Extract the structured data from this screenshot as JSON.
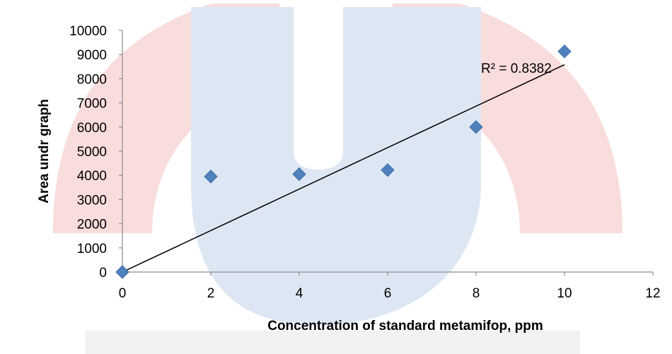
{
  "chart_data": {
    "type": "scatter",
    "title": "",
    "xlabel": "Concentration of standard metamifop, ppm",
    "ylabel": "Area undr graph",
    "xlim": [
      0,
      12
    ],
    "ylim": [
      0,
      10000
    ],
    "x_ticks": [
      "0",
      "2",
      "4",
      "6",
      "8",
      "10",
      "12"
    ],
    "y_ticks": [
      "0",
      "1000",
      "2000",
      "3000",
      "4000",
      "5000",
      "6000",
      "7000",
      "8000",
      "9000",
      "10000"
    ],
    "grid": false,
    "legend": "none",
    "series": [
      {
        "marker": "diamond",
        "color": "#4f81bd",
        "x": [
          0,
          2,
          4,
          6,
          8,
          10
        ],
        "y": [
          0,
          3950,
          4050,
          4220,
          6000,
          9130
        ]
      }
    ],
    "trendline": {
      "type": "linear",
      "color": "#000000",
      "x": [
        0,
        10
      ],
      "y": [
        0,
        8580
      ]
    },
    "annotations": [
      {
        "text": "R² = 0.8382"
      }
    ]
  },
  "colors": {
    "background": "#ffffff",
    "axis": "#8c8c8c",
    "watermark_red": "#f7dada",
    "watermark_blue": "#dbe6f3"
  },
  "icons": {
    "watermark": "university-logo-watermark"
  }
}
